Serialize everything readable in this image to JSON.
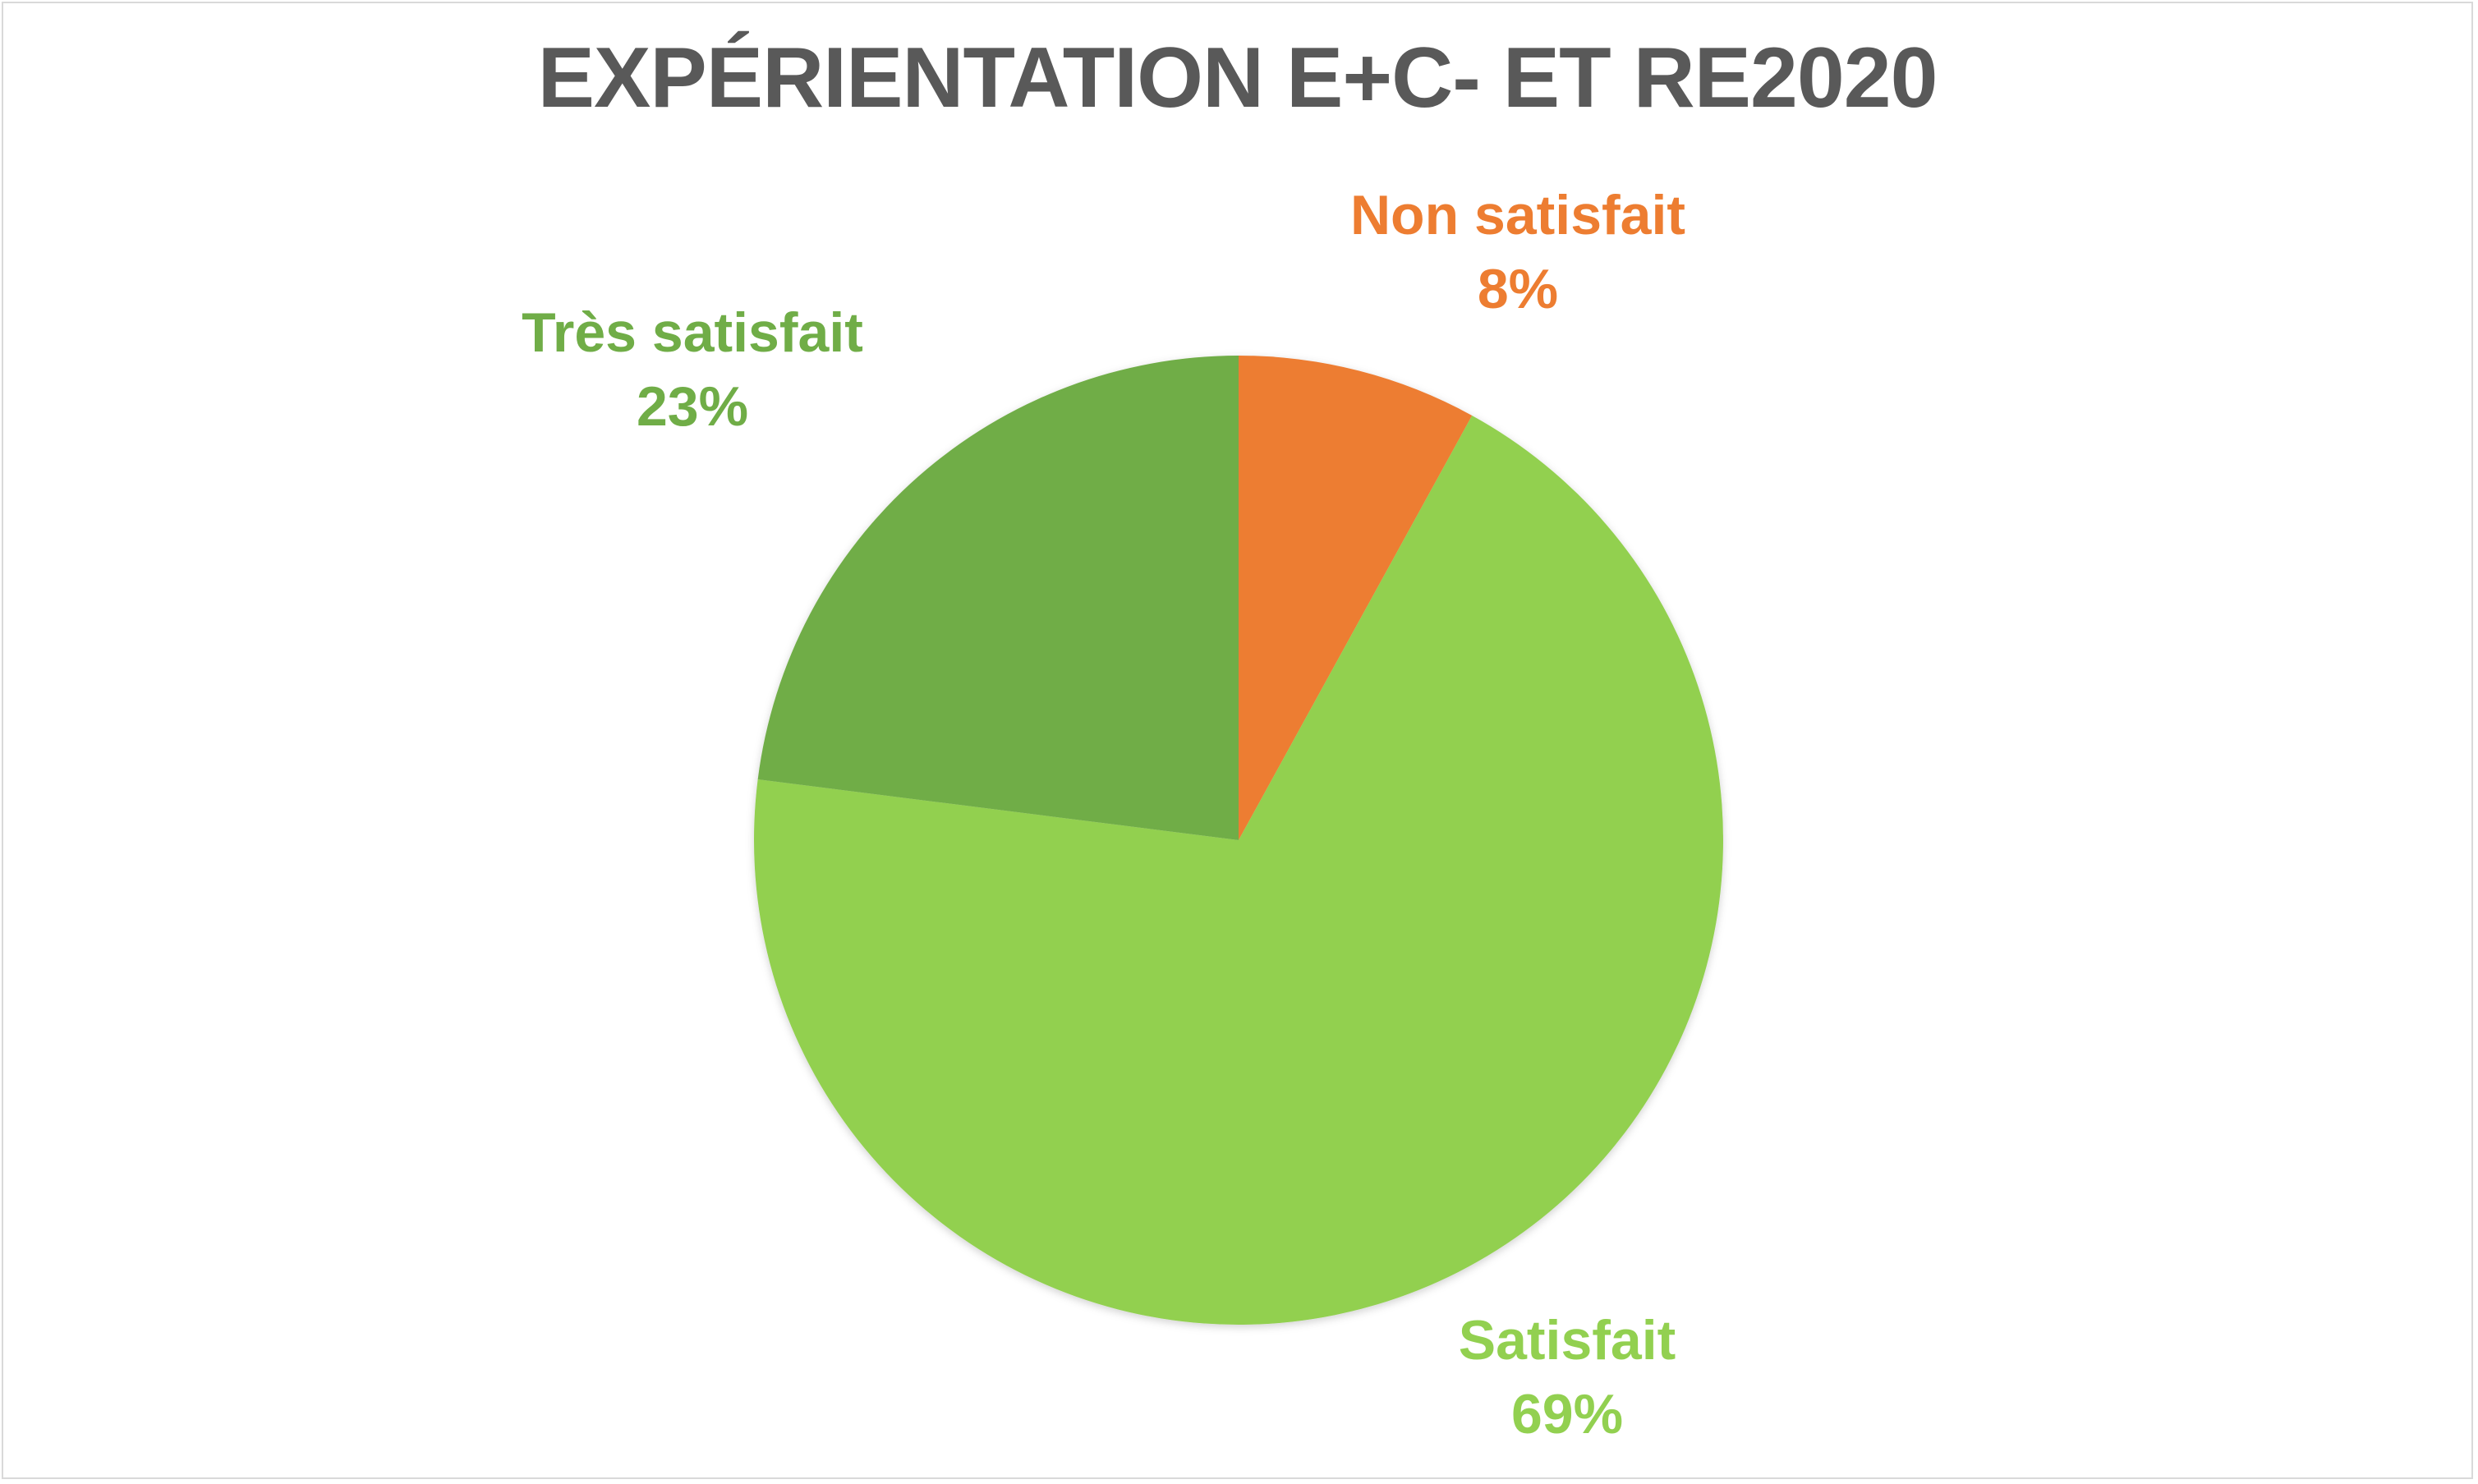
{
  "chart_data": {
    "type": "pie",
    "title": "EXPÉRIENTATION E+C- ET RE2020",
    "categories": [
      "Non satisfait",
      "Satisfait",
      "Très satisfait"
    ],
    "values": [
      8,
      69,
      23
    ],
    "value_format": "percent",
    "colors": [
      "#ed7d31",
      "#92d050",
      "#70ad47"
    ],
    "start_angle": "12 o'clock",
    "direction": "clockwise",
    "legend": "none",
    "data_labels": [
      {
        "category": "Non satisfait",
        "text": "8%"
      },
      {
        "category": "Satisfait",
        "text": "69%"
      },
      {
        "category": "Très satisfait",
        "text": "23%"
      }
    ]
  }
}
